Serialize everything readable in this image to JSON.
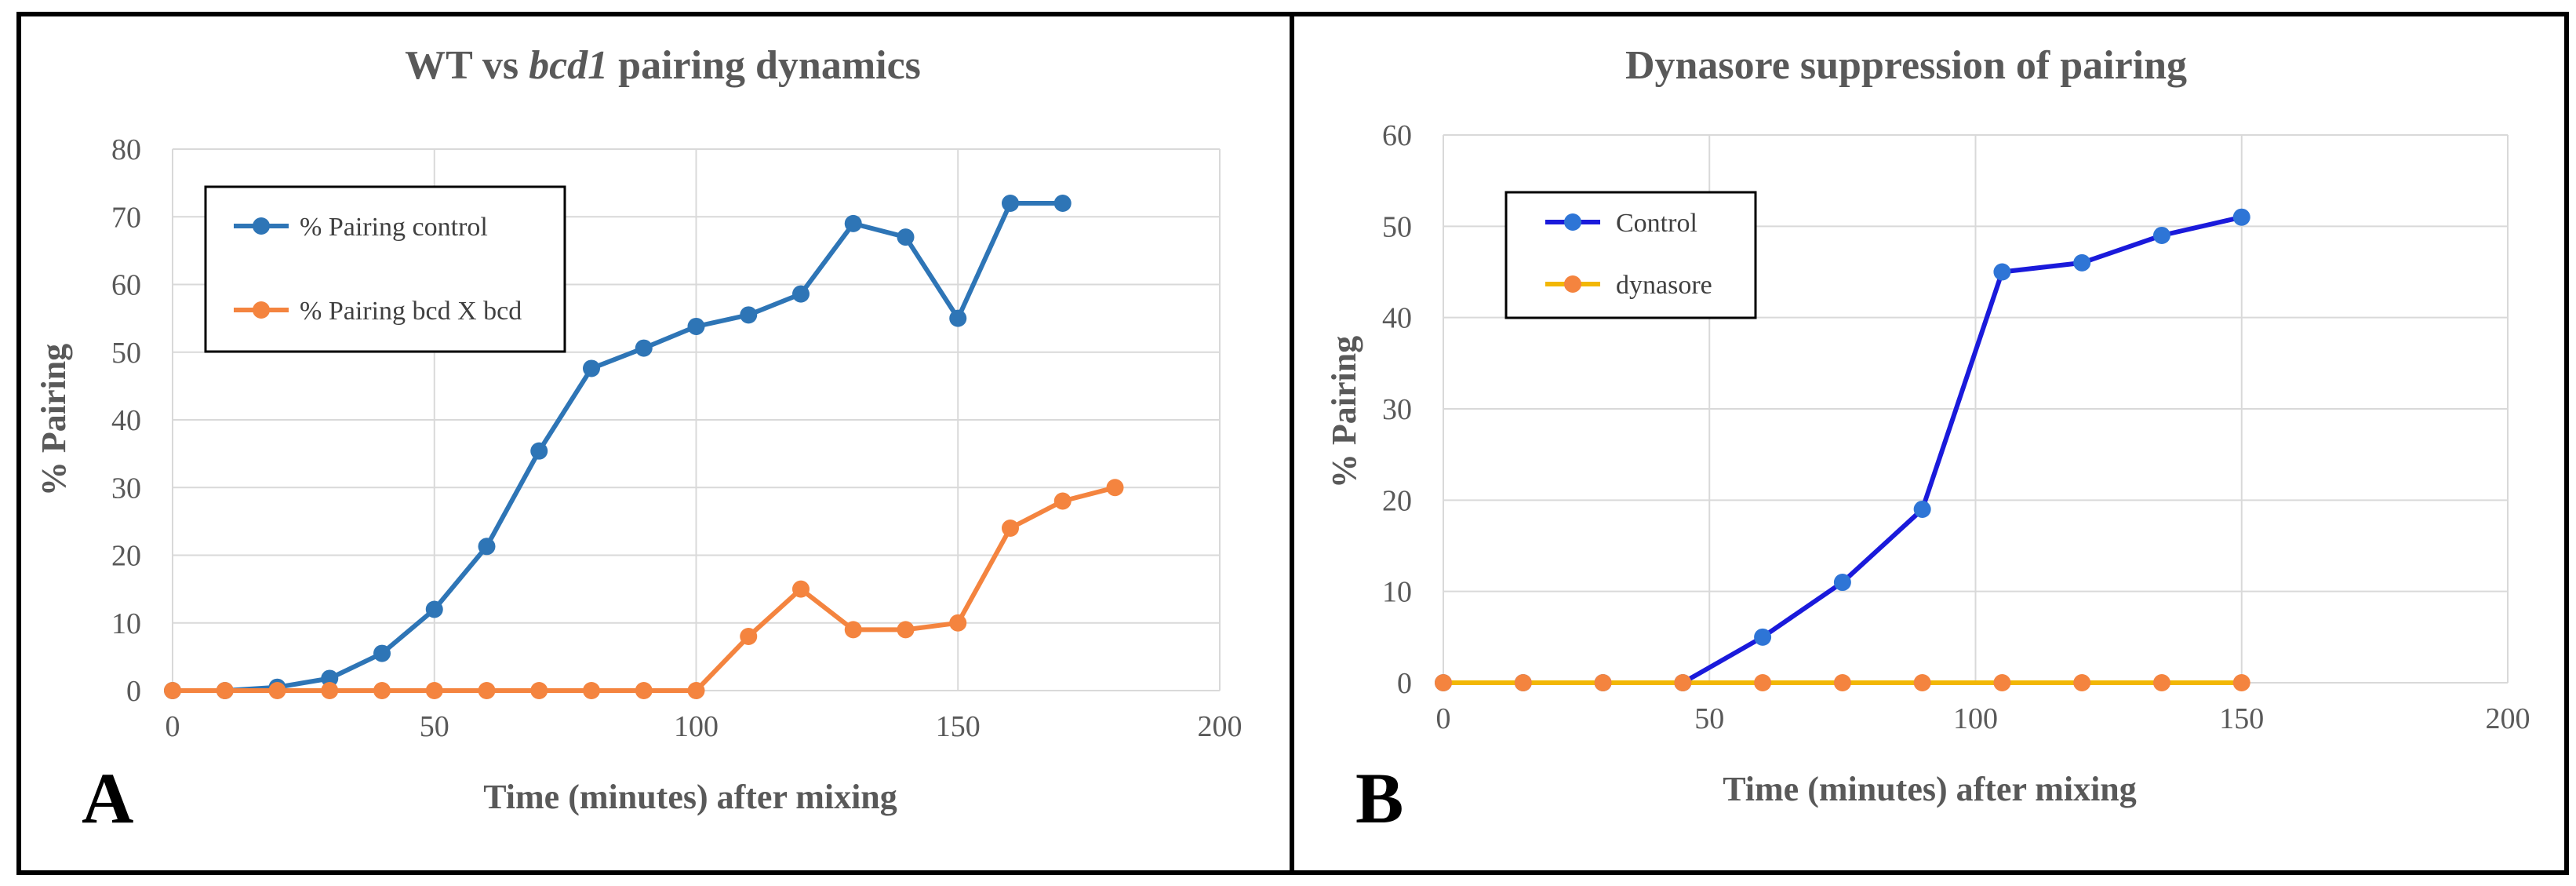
{
  "chart_data": [
    {
      "type": "line",
      "panel_label": "A",
      "title_parts": [
        "WT vs ",
        "bcd1",
        " pairing dynamics"
      ],
      "xlabel": "Time (minutes) after mixing",
      "ylabel": "% Pairing",
      "xlim": [
        0,
        200
      ],
      "ylim": [
        0,
        80
      ],
      "x_ticks": [
        0,
        50,
        100,
        150,
        200
      ],
      "y_ticks": [
        0,
        10,
        20,
        30,
        40,
        50,
        60,
        70,
        80
      ],
      "grid": true,
      "legend_position": "top-left",
      "series": [
        {
          "name": "% Pairing control",
          "color": "#2e75b6",
          "x": [
            0,
            10,
            20,
            30,
            40,
            50,
            60,
            70,
            80,
            90,
            100,
            110,
            120,
            130,
            140,
            150,
            160,
            170
          ],
          "y": [
            0,
            0,
            0.5,
            1.8,
            5.5,
            12,
            21.3,
            35.4,
            47.6,
            50.6,
            53.8,
            55.5,
            58.6,
            69,
            67,
            55,
            72,
            72
          ]
        },
        {
          "name": "% Pairing bcd X bcd",
          "color": "#f4843f",
          "x": [
            0,
            10,
            20,
            30,
            40,
            50,
            60,
            70,
            80,
            90,
            100,
            110,
            120,
            130,
            140,
            150,
            160,
            170,
            180
          ],
          "y": [
            0,
            0,
            0,
            0,
            0,
            0,
            0,
            0,
            0,
            0,
            0,
            8,
            15,
            9,
            9,
            10,
            24,
            28,
            30
          ]
        }
      ]
    },
    {
      "type": "line",
      "panel_label": "B",
      "title": "Dynasore suppression of pairing",
      "xlabel": "Time (minutes) after mixing",
      "ylabel": "% Pairing",
      "xlim": [
        0,
        200
      ],
      "ylim": [
        0,
        60
      ],
      "x_ticks": [
        0,
        50,
        100,
        150,
        200
      ],
      "y_ticks": [
        0,
        10,
        20,
        30,
        40,
        50,
        60
      ],
      "grid": true,
      "legend_position": "top-left",
      "series": [
        {
          "name": "Control",
          "color": "#1a1adb",
          "marker_color": "#2e75d6",
          "x": [
            0,
            15,
            30,
            45,
            60,
            75,
            90,
            105,
            120,
            135,
            150
          ],
          "y": [
            0,
            0,
            0,
            0,
            5,
            11,
            19,
            45,
            46,
            49,
            51
          ]
        },
        {
          "name": "dynasore",
          "color": "#f2b705",
          "marker_color": "#f4843f",
          "x": [
            0,
            15,
            30,
            45,
            60,
            75,
            90,
            105,
            120,
            135,
            150
          ],
          "y": [
            0,
            0,
            0,
            0,
            0,
            0,
            0,
            0,
            0,
            0,
            0
          ]
        }
      ]
    }
  ]
}
